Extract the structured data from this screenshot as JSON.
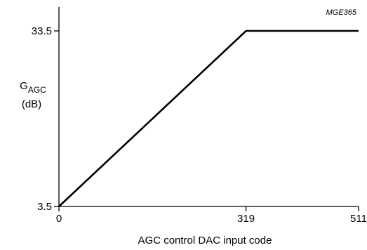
{
  "figure_code": "MGE365",
  "chart_data": {
    "type": "line",
    "xlabel": "AGC control DAC input code",
    "ylabel_main": "G",
    "ylabel_sub": "AGC",
    "ylabel_unit": "(dB)",
    "x_ticks": [
      0,
      319,
      511
    ],
    "y_ticks": [
      3.5,
      33.5
    ],
    "y_tick_labels": [
      "3.5",
      "33.5"
    ],
    "xlim": [
      0,
      511
    ],
    "ylim": [
      3.5,
      33.5
    ],
    "grid": false,
    "series": [
      {
        "x": [
          0,
          319,
          511
        ],
        "y": [
          3.5,
          33.5,
          33.5
        ]
      }
    ]
  }
}
